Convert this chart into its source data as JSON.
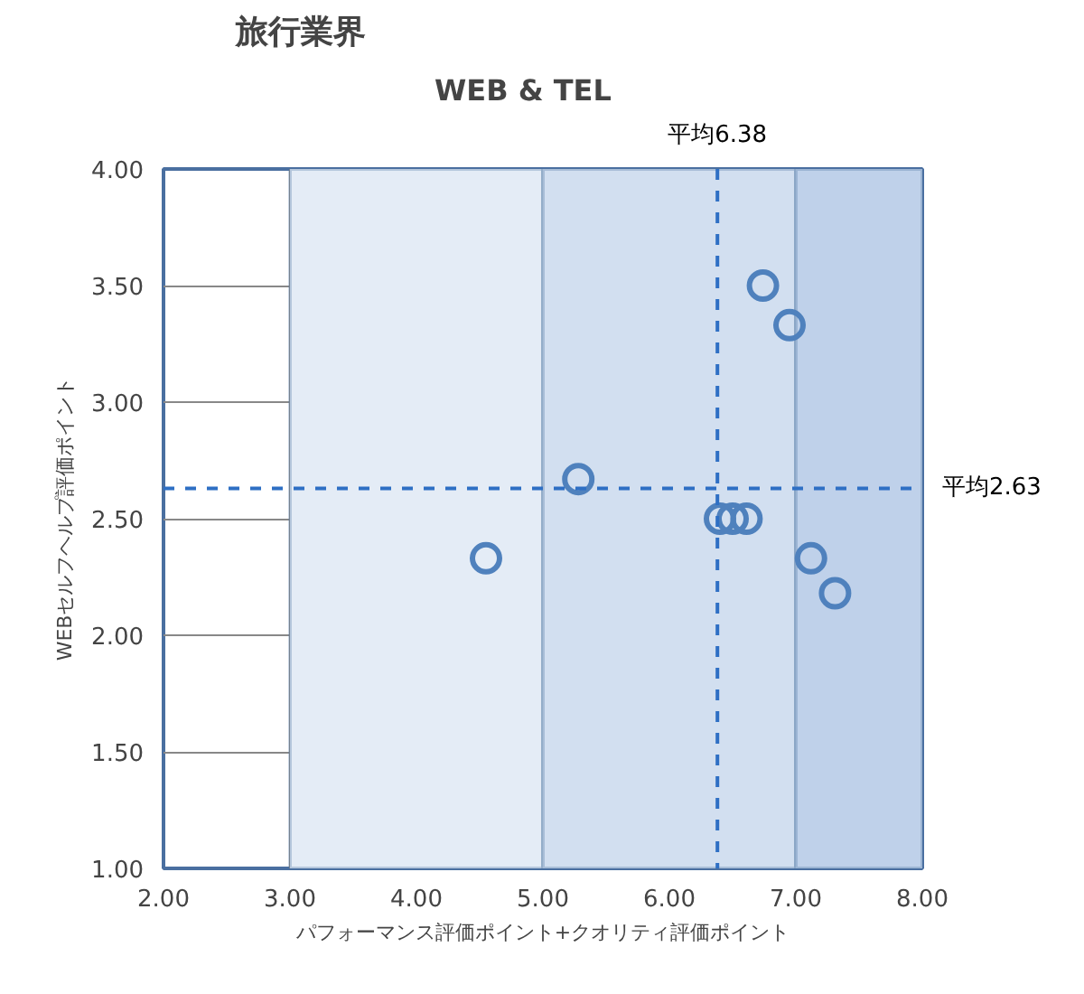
{
  "chart_data": {
    "type": "scatter",
    "title": "旅行業界",
    "subtitle": "WEB & TEL",
    "xlabel": "パフォーマンス評価ポイント+クオリティ評価ポイント",
    "ylabel": "WEBセルフヘルプ評価ポイント",
    "series": [
      {
        "color": "#4f81bd",
        "x": [
          6.74,
          6.95,
          5.28,
          4.55,
          6.4,
          6.5,
          6.61,
          7.12,
          7.31
        ],
        "values": [
          3.5,
          3.33,
          2.67,
          2.33,
          2.5,
          2.5,
          2.5,
          2.33,
          2.18
        ]
      }
    ],
    "marker": "circle",
    "grid": true,
    "xlim": [
      2,
      8
    ],
    "ylim": [
      1,
      4
    ],
    "xticks": [
      {
        "value": 2,
        "label": "2.00"
      },
      {
        "value": 3,
        "label": "3.00"
      },
      {
        "value": 4,
        "label": "4.00"
      },
      {
        "value": 5,
        "label": "5.00"
      },
      {
        "value": 6,
        "label": "6.00"
      },
      {
        "value": 7,
        "label": "7.00"
      },
      {
        "value": 8,
        "label": "8.00"
      }
    ],
    "yticks": [
      {
        "value": 1,
        "label": "1.00"
      },
      {
        "value": 1.5,
        "label": "1.50"
      },
      {
        "value": 2,
        "label": "2.00"
      },
      {
        "value": 2.5,
        "label": "2.50"
      },
      {
        "value": 3,
        "label": "3.00"
      },
      {
        "value": 3.5,
        "label": "3.50"
      },
      {
        "value": 4,
        "label": "4.00"
      }
    ],
    "bands": [
      {
        "axis": "x",
        "from": 3,
        "to": 5,
        "color": "#e4ecf6"
      },
      {
        "axis": "x",
        "from": 5,
        "to": 7,
        "color": "#d2dff0"
      },
      {
        "axis": "x",
        "from": 7,
        "to": 8,
        "color": "#bfd1ea"
      }
    ],
    "ref_lines": [
      {
        "axis": "x",
        "value": 6.38,
        "label": "平均6.38",
        "color": "#2e6fc4",
        "line_style": "dashed"
      },
      {
        "axis": "y",
        "value": 2.63,
        "label": "平均2.63",
        "color": "#2e6fc4",
        "line_style": "dashed"
      }
    ]
  }
}
